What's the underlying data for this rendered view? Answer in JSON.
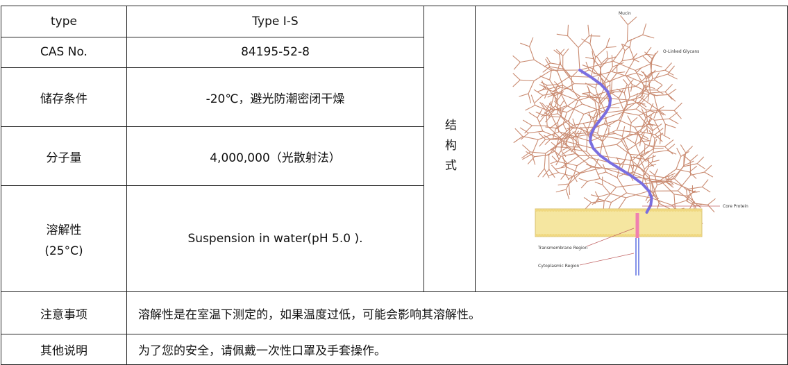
{
  "table": {
    "rows": [
      {
        "label": "type",
        "value": "Type I-S"
      },
      {
        "label": "CAS No.",
        "value": "84195-52-8"
      },
      {
        "label": "储存条件",
        "value": "-20℃，避光防潮密闭干燥"
      },
      {
        "label": "分子量",
        "value": "4,000,000（光散射法）"
      },
      {
        "label": [
          "溶解性",
          "(25°C)"
        ],
        "value": "Suspension in water(pH 5.0 )."
      }
    ],
    "structure_label": "结构式",
    "figure": {
      "title": "Mucin",
      "glycans": "O-Linked Glycans",
      "core": "Core Protein",
      "transmembrane": "Transmembrane Region",
      "cytoplasmic": "Cytoplasmic Region"
    },
    "notes": [
      {
        "label": "注意事项",
        "value": "溶解性是在室温下测定的，如果温度过低，可能会影响其溶解性。"
      },
      {
        "label": "其他说明",
        "value": "为了您的安全，请佩戴一次性口罩及手套操作。"
      }
    ]
  }
}
